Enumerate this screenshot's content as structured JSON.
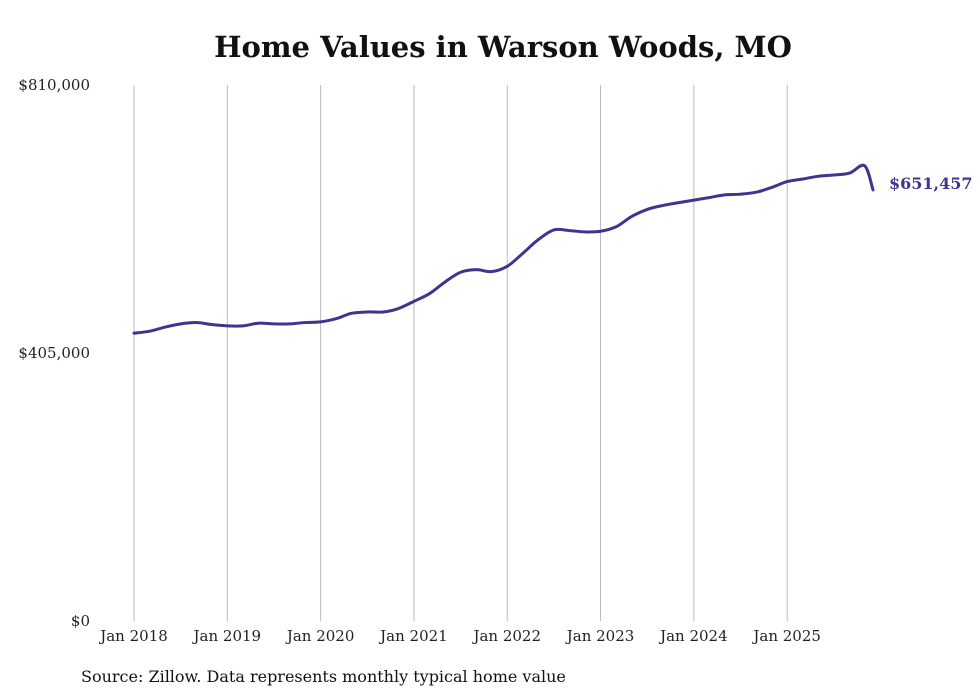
{
  "chart_data": {
    "type": "line",
    "title": "Home Values in Warson Woods, MO",
    "xlabel": "",
    "ylabel": "",
    "ylim": [
      0,
      810000
    ],
    "y_ticks": [
      {
        "value": 0,
        "label": "$0"
      },
      {
        "value": 405000,
        "label": "$405,000"
      },
      {
        "value": 810000,
        "label": "$810,000"
      }
    ],
    "x_ticks": [
      {
        "value": 2018.0,
        "label": "Jan 2018"
      },
      {
        "value": 2019.0,
        "label": "Jan 2019"
      },
      {
        "value": 2020.0,
        "label": "Jan 2020"
      },
      {
        "value": 2021.0,
        "label": "Jan 2021"
      },
      {
        "value": 2022.0,
        "label": "Jan 2022"
      },
      {
        "value": 2023.0,
        "label": "Jan 2023"
      },
      {
        "value": 2024.0,
        "label": "Jan 2024"
      },
      {
        "value": 2025.0,
        "label": "Jan 2025"
      }
    ],
    "xlim": [
      2018.0,
      2025.92
    ],
    "grid": "vertical",
    "series": [
      {
        "name": "Typical home value",
        "color": "#3d3590",
        "x": [
          2018.0,
          2018.17,
          2018.33,
          2018.5,
          2018.67,
          2018.83,
          2019.0,
          2019.17,
          2019.33,
          2019.5,
          2019.67,
          2019.83,
          2020.0,
          2020.17,
          2020.33,
          2020.5,
          2020.67,
          2020.83,
          2021.0,
          2021.17,
          2021.33,
          2021.5,
          2021.67,
          2021.83,
          2022.0,
          2022.17,
          2022.33,
          2022.5,
          2022.67,
          2022.83,
          2023.0,
          2023.17,
          2023.33,
          2023.5,
          2023.67,
          2023.83,
          2024.0,
          2024.17,
          2024.33,
          2024.5,
          2024.67,
          2024.83,
          2025.0,
          2025.17,
          2025.33,
          2025.5,
          2025.67,
          2025.83,
          2025.92
        ],
        "values": [
          435000,
          438000,
          444000,
          449000,
          451000,
          448000,
          446000,
          446000,
          450000,
          449000,
          449000,
          451000,
          452000,
          457000,
          465000,
          467000,
          467000,
          472000,
          483000,
          495000,
          512000,
          527000,
          531000,
          528000,
          536000,
          556000,
          576000,
          591000,
          590000,
          588000,
          589000,
          596000,
          611000,
          622000,
          628000,
          632000,
          636000,
          640000,
          644000,
          645000,
          648000,
          655000,
          664000,
          668000,
          672000,
          674000,
          677000,
          688000,
          651457
        ]
      }
    ],
    "end_label": "$651,457",
    "annotations": [
      {
        "text": "$651,457",
        "attached_to": "last-point"
      }
    ]
  },
  "source_note": "Source: Zillow. Data represents monthly typical home value"
}
